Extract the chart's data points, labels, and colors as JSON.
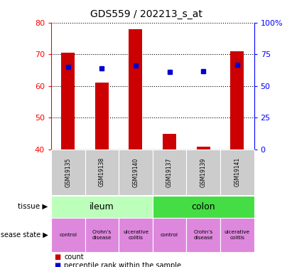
{
  "title": "GDS559 / 202213_s_at",
  "samples": [
    "GSM19135",
    "GSM19138",
    "GSM19140",
    "GSM19137",
    "GSM19139",
    "GSM19141"
  ],
  "counts": [
    70.5,
    61.0,
    78.0,
    45.0,
    41.0,
    71.0
  ],
  "percentiles": [
    65.0,
    64.0,
    66.0,
    61.0,
    62.0,
    67.0
  ],
  "ylim_left": [
    40,
    80
  ],
  "ylim_right": [
    0,
    100
  ],
  "yticks_left": [
    40,
    50,
    60,
    70,
    80
  ],
  "yticks_right": [
    0,
    25,
    50,
    75,
    100
  ],
  "ytick_labels_right": [
    "0",
    "25",
    "50",
    "75",
    "100%"
  ],
  "bar_color": "#cc0000",
  "dot_color": "#0000cc",
  "tissue_ileum_color": "#bbffbb",
  "tissue_colon_color": "#44dd44",
  "disease_color": "#dd88dd",
  "sample_box_color": "#cccccc",
  "bg_color": "#ffffff",
  "legend_count_label": "count",
  "legend_pct_label": "percentile rank within the sample",
  "tissue_row_label": "tissue",
  "disease_row_label": "disease state"
}
